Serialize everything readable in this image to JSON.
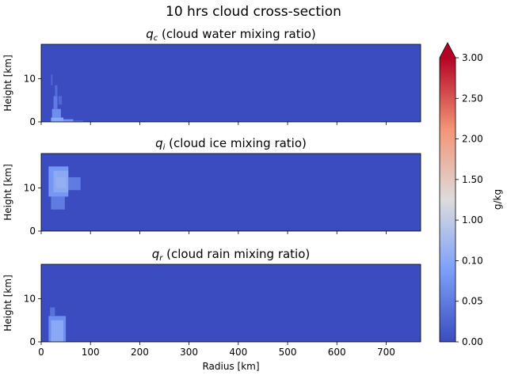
{
  "chart_data": {
    "type": "heatmap",
    "suptitle": "10 hrs cloud cross-section",
    "shared_x": {
      "label": "Radius [km]",
      "lim": [
        0,
        770
      ],
      "ticks": [
        0,
        100,
        200,
        300,
        400,
        500,
        600,
        700
      ]
    },
    "shared_y": {
      "label": "Height [km]",
      "lim": [
        0,
        18
      ],
      "ticks": [
        0,
        10
      ]
    },
    "panels": [
      {
        "title_symbol": "q",
        "title_sub": "c",
        "title_text": " (cloud water mixing ratio)",
        "background_value": 0.0,
        "cells": [
          {
            "x": [
              20,
              45
            ],
            "y": [
              0,
              1.0
            ],
            "v": 0.12
          },
          {
            "x": [
              45,
              65
            ],
            "y": [
              0,
              0.6
            ],
            "v": 0.08
          },
          {
            "x": [
              65,
              85
            ],
            "y": [
              0,
              0.3
            ],
            "v": 0.04
          },
          {
            "x": [
              22,
              40
            ],
            "y": [
              1.0,
              3.0
            ],
            "v": 0.07
          },
          {
            "x": [
              25,
              33
            ],
            "y": [
              3.0,
              6.0
            ],
            "v": 0.05
          },
          {
            "x": [
              28,
              33
            ],
            "y": [
              6.0,
              8.5
            ],
            "v": 0.035
          },
          {
            "x": [
              20,
              23
            ],
            "y": [
              8.5,
              11.0
            ],
            "v": 0.03
          },
          {
            "x": [
              35,
              42
            ],
            "y": [
              4.0,
              6.0
            ],
            "v": 0.03
          }
        ]
      },
      {
        "title_symbol": "q",
        "title_sub": "i",
        "title_text": " (cloud ice mixing ratio)",
        "background_value": 0.0,
        "cells": [
          {
            "x": [
              15,
              55
            ],
            "y": [
              8.0,
              15.0
            ],
            "v": 0.08
          },
          {
            "x": [
              55,
              80
            ],
            "y": [
              9.5,
              12.5
            ],
            "v": 0.05
          },
          {
            "x": [
              20,
              48
            ],
            "y": [
              5.0,
              8.0
            ],
            "v": 0.05
          },
          {
            "x": [
              25,
              55
            ],
            "y": [
              9.0,
              14.0
            ],
            "v": 0.12
          },
          {
            "x": [
              30,
              50
            ],
            "y": [
              10.0,
              12.5
            ],
            "v": 0.3
          }
        ]
      },
      {
        "title_symbol": "q",
        "title_sub": "r",
        "title_text": " (cloud rain mixing ratio)",
        "background_value": 0.0,
        "cells": [
          {
            "x": [
              15,
              50
            ],
            "y": [
              0,
              6.0
            ],
            "v": 0.07
          },
          {
            "x": [
              18,
              28
            ],
            "y": [
              6.0,
              8.0
            ],
            "v": 0.04
          },
          {
            "x": [
              20,
              45
            ],
            "y": [
              0,
              5.0
            ],
            "v": 0.1
          },
          {
            "x": [
              25,
              40
            ],
            "y": [
              0,
              3.0
            ],
            "v": 0.11
          }
        ]
      }
    ],
    "colorbar": {
      "label": "g/kg",
      "ticks": [
        "0.00",
        "0.05",
        "0.10",
        "1.00",
        "1.50",
        "2.00",
        "2.50",
        "3.00"
      ],
      "tick_values": [
        0.0,
        0.05,
        0.1,
        1.0,
        1.5,
        2.0,
        2.5,
        3.0
      ],
      "extend": "max",
      "cmap": "coolwarm"
    }
  }
}
